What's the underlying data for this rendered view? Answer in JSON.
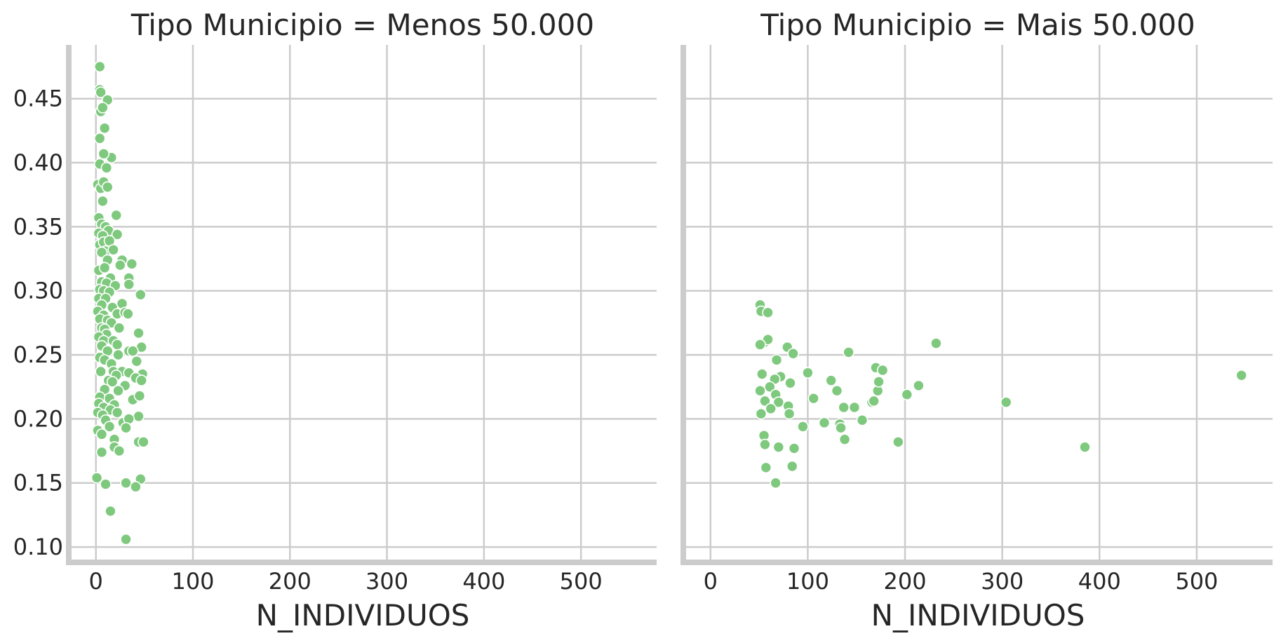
{
  "chart_data": {
    "type": "scatter",
    "xlabel": "N_INDIVIDUOS",
    "ylabel": "",
    "xlim": [
      -28,
      578
    ],
    "ylim": [
      0.088,
      0.492
    ],
    "xticks": [
      0,
      100,
      200,
      300,
      400,
      500
    ],
    "yticks": [
      0.1,
      0.15,
      0.2,
      0.25,
      0.3,
      0.35,
      0.4,
      0.45
    ],
    "grid": true,
    "legend": "none",
    "sharey": true,
    "point_color": "#7fc97f",
    "facets": [
      {
        "title": "Tipo Municipio = Menos 50.000",
        "points": [
          [
            4,
            0.475
          ],
          [
            4,
            0.457
          ],
          [
            5,
            0.455
          ],
          [
            12,
            0.449
          ],
          [
            5,
            0.44
          ],
          [
            7,
            0.443
          ],
          [
            9,
            0.427
          ],
          [
            4,
            0.419
          ],
          [
            16,
            0.404
          ],
          [
            8,
            0.407
          ],
          [
            4,
            0.399
          ],
          [
            11,
            0.396
          ],
          [
            2,
            0.383
          ],
          [
            5,
            0.38
          ],
          [
            8,
            0.385
          ],
          [
            12,
            0.381
          ],
          [
            7,
            0.37
          ],
          [
            3,
            0.357
          ],
          [
            21,
            0.359
          ],
          [
            6,
            0.352
          ],
          [
            10,
            0.35
          ],
          [
            13,
            0.347
          ],
          [
            3,
            0.345
          ],
          [
            7,
            0.343
          ],
          [
            22,
            0.344
          ],
          [
            4,
            0.336
          ],
          [
            8,
            0.338
          ],
          [
            14,
            0.339
          ],
          [
            10,
            0.331
          ],
          [
            6,
            0.33
          ],
          [
            18,
            0.332
          ],
          [
            27,
            0.324
          ],
          [
            12,
            0.324
          ],
          [
            37,
            0.321
          ],
          [
            3,
            0.316
          ],
          [
            9,
            0.318
          ],
          [
            25,
            0.32
          ],
          [
            15,
            0.31
          ],
          [
            34,
            0.31
          ],
          [
            6,
            0.307
          ],
          [
            11,
            0.306
          ],
          [
            20,
            0.304
          ],
          [
            34,
            0.305
          ],
          [
            4,
            0.301
          ],
          [
            8,
            0.3
          ],
          [
            14,
            0.299
          ],
          [
            46,
            0.297
          ],
          [
            3,
            0.294
          ],
          [
            10,
            0.294
          ],
          [
            6,
            0.289
          ],
          [
            27,
            0.29
          ],
          [
            17,
            0.287
          ],
          [
            2,
            0.284
          ],
          [
            8,
            0.281
          ],
          [
            22,
            0.282
          ],
          [
            30,
            0.283
          ],
          [
            33,
            0.282
          ],
          [
            4,
            0.278
          ],
          [
            12,
            0.277
          ],
          [
            16,
            0.275
          ],
          [
            6,
            0.271
          ],
          [
            9,
            0.27
          ],
          [
            24,
            0.271
          ],
          [
            11,
            0.266
          ],
          [
            3,
            0.264
          ],
          [
            44,
            0.267
          ],
          [
            8,
            0.261
          ],
          [
            18,
            0.261
          ],
          [
            22,
            0.258
          ],
          [
            6,
            0.257
          ],
          [
            47,
            0.256
          ],
          [
            12,
            0.253
          ],
          [
            34,
            0.253
          ],
          [
            38,
            0.253
          ],
          [
            23,
            0.25
          ],
          [
            4,
            0.248
          ],
          [
            9,
            0.246
          ],
          [
            42,
            0.245
          ],
          [
            16,
            0.243
          ],
          [
            5,
            0.237
          ],
          [
            18,
            0.237
          ],
          [
            27,
            0.237
          ],
          [
            34,
            0.236
          ],
          [
            48,
            0.235
          ],
          [
            21,
            0.234
          ],
          [
            41,
            0.232
          ],
          [
            13,
            0.23
          ],
          [
            17,
            0.229
          ],
          [
            47,
            0.23
          ],
          [
            30,
            0.226
          ],
          [
            9,
            0.223
          ],
          [
            23,
            0.222
          ],
          [
            4,
            0.217
          ],
          [
            14,
            0.216
          ],
          [
            38,
            0.215
          ],
          [
            45,
            0.218
          ],
          [
            3,
            0.212
          ],
          [
            19,
            0.211
          ],
          [
            8,
            0.209
          ],
          [
            15,
            0.207
          ],
          [
            2,
            0.205
          ],
          [
            22,
            0.205
          ],
          [
            7,
            0.203
          ],
          [
            44,
            0.202
          ],
          [
            10,
            0.199
          ],
          [
            28,
            0.197
          ],
          [
            34,
            0.2
          ],
          [
            31,
            0.193
          ],
          [
            14,
            0.194
          ],
          [
            2,
            0.191
          ],
          [
            6,
            0.188
          ],
          [
            19,
            0.184
          ],
          [
            44,
            0.182
          ],
          [
            49,
            0.182
          ],
          [
            19,
            0.178
          ],
          [
            24,
            0.175
          ],
          [
            6,
            0.174
          ],
          [
            1,
            0.154
          ],
          [
            46,
            0.153
          ],
          [
            10,
            0.149
          ],
          [
            31,
            0.15
          ],
          [
            41,
            0.147
          ],
          [
            15,
            0.128
          ],
          [
            31,
            0.106
          ]
        ]
      },
      {
        "title": "Tipo Municipio = Mais 50.000",
        "points": [
          [
            51,
            0.289
          ],
          [
            52,
            0.284
          ],
          [
            59,
            0.283
          ],
          [
            56,
            0.26
          ],
          [
            59,
            0.262
          ],
          [
            51,
            0.258
          ],
          [
            79,
            0.256
          ],
          [
            85,
            0.251
          ],
          [
            68,
            0.246
          ],
          [
            100,
            0.236
          ],
          [
            53,
            0.235
          ],
          [
            72,
            0.233
          ],
          [
            66,
            0.231
          ],
          [
            124,
            0.23
          ],
          [
            61,
            0.225
          ],
          [
            82,
            0.228
          ],
          [
            51,
            0.222
          ],
          [
            67,
            0.219
          ],
          [
            56,
            0.214
          ],
          [
            70,
            0.213
          ],
          [
            62,
            0.208
          ],
          [
            80,
            0.21
          ],
          [
            81,
            0.204
          ],
          [
            130,
            0.222
          ],
          [
            142,
            0.252
          ],
          [
            106,
            0.216
          ],
          [
            137,
            0.209
          ],
          [
            148,
            0.209
          ],
          [
            52,
            0.204
          ],
          [
            117,
            0.197
          ],
          [
            133,
            0.196
          ],
          [
            134,
            0.193
          ],
          [
            95,
            0.194
          ],
          [
            156,
            0.199
          ],
          [
            166,
            0.213
          ],
          [
            168,
            0.214
          ],
          [
            172,
            0.222
          ],
          [
            173,
            0.229
          ],
          [
            170,
            0.24
          ],
          [
            177,
            0.238
          ],
          [
            202,
            0.219
          ],
          [
            214,
            0.226
          ],
          [
            232,
            0.259
          ],
          [
            55,
            0.187
          ],
          [
            56,
            0.18
          ],
          [
            70,
            0.178
          ],
          [
            86,
            0.177
          ],
          [
            138,
            0.184
          ],
          [
            193,
            0.182
          ],
          [
            57,
            0.162
          ],
          [
            84,
            0.163
          ],
          [
            67,
            0.15
          ],
          [
            304,
            0.213
          ],
          [
            385,
            0.178
          ],
          [
            546,
            0.234
          ]
        ]
      }
    ]
  }
}
